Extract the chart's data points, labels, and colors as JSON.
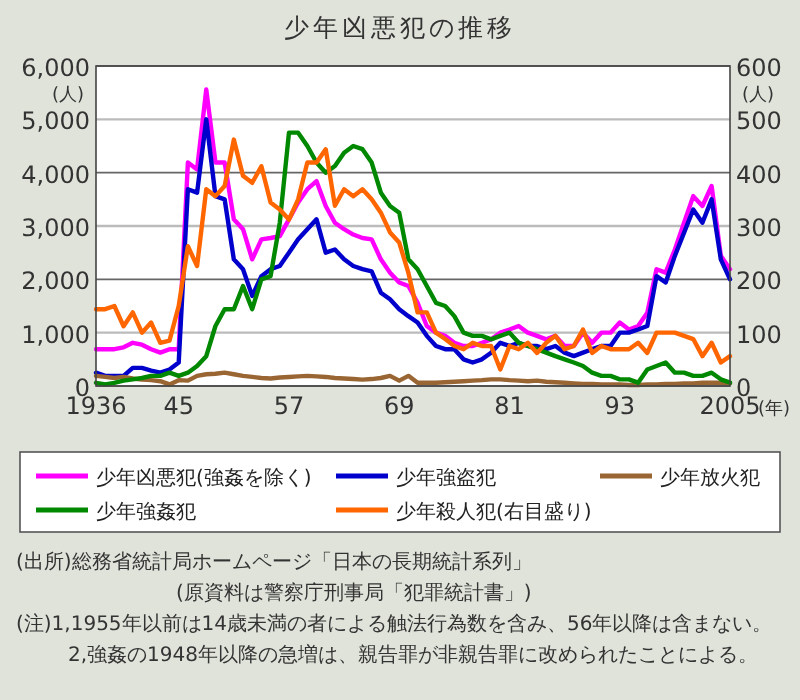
{
  "chart_data": {
    "type": "line",
    "title": "少年凶悪犯の推移",
    "xlabel": "(年)",
    "ylabel": "(人)",
    "y2label": "(人)",
    "x": [
      1936,
      1937,
      1938,
      1939,
      1940,
      1941,
      1942,
      1943,
      1944,
      1945,
      1946,
      1947,
      1948,
      1949,
      1950,
      1951,
      1952,
      1953,
      1954,
      1955,
      1956,
      1957,
      1958,
      1959,
      1960,
      1961,
      1962,
      1963,
      1964,
      1965,
      1966,
      1967,
      1968,
      1969,
      1970,
      1971,
      1972,
      1973,
      1974,
      1975,
      1976,
      1977,
      1978,
      1979,
      1980,
      1981,
      1982,
      1983,
      1984,
      1985,
      1986,
      1987,
      1988,
      1989,
      1990,
      1991,
      1992,
      1993,
      1994,
      1995,
      1996,
      1997,
      1998,
      1999,
      2000,
      2001,
      2002,
      2003,
      2004,
      2005
    ],
    "series": [
      {
        "name": "少年凶悪犯(強姦を除く)",
        "color": "#ff00ff",
        "values": [
          690,
          690,
          690,
          725,
          810,
          775,
          690,
          625,
          690,
          690,
          4190,
          4060,
          5560,
          4190,
          4190,
          3125,
          2940,
          2375,
          2750,
          2775,
          2810,
          3125,
          3440,
          3690,
          3840,
          3375,
          3060,
          2940,
          2840,
          2775,
          2750,
          2375,
          2125,
          1940,
          1875,
          1560,
          1125,
          1000,
          940,
          810,
          750,
          750,
          810,
          875,
          1000,
          1060,
          1125,
          1000,
          940,
          875,
          940,
          750,
          750,
          1000,
          810,
          1000,
          1000,
          1190,
          1060,
          1125,
          1375,
          2190,
          2125,
          2560,
          3060,
          3560,
          3375,
          3750,
          2440,
          2190
        ]
      },
      {
        "name": "少年強盗犯",
        "color": "#0000cc",
        "values": [
          250,
          190,
          190,
          190,
          340,
          340,
          290,
          250,
          310,
          440,
          3690,
          3625,
          5000,
          3560,
          3500,
          2375,
          2190,
          1690,
          2060,
          2190,
          2250,
          2500,
          2750,
          2940,
          3125,
          2500,
          2560,
          2375,
          2250,
          2190,
          2150,
          1750,
          1625,
          1440,
          1310,
          1190,
          940,
          750,
          690,
          690,
          500,
          440,
          500,
          625,
          810,
          750,
          810,
          750,
          750,
          690,
          750,
          625,
          560,
          625,
          690,
          750,
          750,
          1000,
          1000,
          1060,
          1125,
          2060,
          1940,
          2440,
          2875,
          3310,
          3060,
          3500,
          2375,
          2000
        ]
      },
      {
        "name": "少年放火犯",
        "color": "#996633",
        "values": [
          190,
          170,
          150,
          170,
          140,
          120,
          110,
          90,
          30,
          110,
          100,
          190,
          220,
          230,
          250,
          220,
          190,
          170,
          150,
          140,
          160,
          170,
          180,
          190,
          180,
          170,
          150,
          140,
          130,
          120,
          130,
          150,
          190,
          100,
          190,
          60,
          60,
          60,
          70,
          80,
          90,
          100,
          110,
          125,
          125,
          110,
          100,
          90,
          100,
          80,
          70,
          60,
          50,
          40,
          40,
          30,
          30,
          30,
          20,
          20,
          30,
          30,
          40,
          40,
          50,
          50,
          60,
          60,
          60,
          50
        ]
      },
      {
        "name": "少年強姦犯",
        "color": "#008800",
        "values": [
          60,
          30,
          60,
          100,
          125,
          150,
          190,
          190,
          250,
          190,
          250,
          375,
          560,
          1125,
          1440,
          1440,
          1875,
          1440,
          2000,
          2060,
          3060,
          4750,
          4750,
          4500,
          4190,
          4000,
          4125,
          4375,
          4500,
          4440,
          4190,
          3625,
          3375,
          3250,
          2375,
          2190,
          1875,
          1560,
          1500,
          1310,
          1000,
          940,
          940,
          875,
          940,
          1000,
          810,
          750,
          690,
          625,
          560,
          500,
          440,
          375,
          250,
          190,
          190,
          125,
          125,
          63,
          310,
          375,
          440,
          250,
          250,
          190,
          190,
          250,
          125,
          63
        ]
      },
      {
        "name": "少年殺人犯(右目盛り)",
        "color": "#ff6600",
        "axis": "y2",
        "values": [
          144,
          144,
          150,
          112,
          138,
          100,
          119,
          81,
          85,
          150,
          262,
          225,
          369,
          356,
          375,
          462,
          394,
          381,
          412,
          344,
          331,
          312,
          350,
          419,
          419,
          444,
          338,
          369,
          356,
          369,
          350,
          325,
          288,
          269,
          212,
          138,
          138,
          100,
          88,
          75,
          69,
          81,
          75,
          75,
          31,
          75,
          69,
          81,
          62,
          81,
          94,
          69,
          75,
          106,
          62,
          75,
          69,
          69,
          69,
          81,
          62,
          100,
          100,
          100,
          94,
          88,
          56,
          81,
          44,
          56
        ]
      }
    ],
    "xlim": [
      1936,
      2005
    ],
    "xticks": [
      {
        "value": 1936,
        "label": "1936"
      },
      {
        "value": 1945,
        "label": "45"
      },
      {
        "value": 1957,
        "label": "57"
      },
      {
        "value": 1969,
        "label": "69"
      },
      {
        "value": 1981,
        "label": "81"
      },
      {
        "value": 1993,
        "label": "93"
      },
      {
        "value": 2005,
        "label": "2005"
      }
    ],
    "ylim": [
      0,
      6000
    ],
    "yticks": [
      {
        "value": 0,
        "label": "0"
      },
      {
        "value": 1000,
        "label": "1,000"
      },
      {
        "value": 2000,
        "label": "2,000"
      },
      {
        "value": 3000,
        "label": "3,000"
      },
      {
        "value": 4000,
        "label": "4,000"
      },
      {
        "value": 5000,
        "label": "5,000"
      },
      {
        "value": 6000,
        "label": "6,000"
      }
    ],
    "y2lim": [
      0,
      600
    ],
    "y2ticks": [
      0,
      100,
      200,
      300,
      400,
      500,
      600
    ],
    "grid": "y",
    "legend": "bottom",
    "line_style": "solid",
    "annotations": [
      "(出所)総務省統計局ホームページ「日本の長期統計系列」",
      "(原資料は警察庁刑事局「犯罪統計書」)",
      "(注)1,1955年以前は14歳未満の者による触法行為数を含み、56年以降は含まない。",
      "2,強姦の1948年以降の急増は、親告罪が非親告罪に改められたことによる。"
    ]
  }
}
